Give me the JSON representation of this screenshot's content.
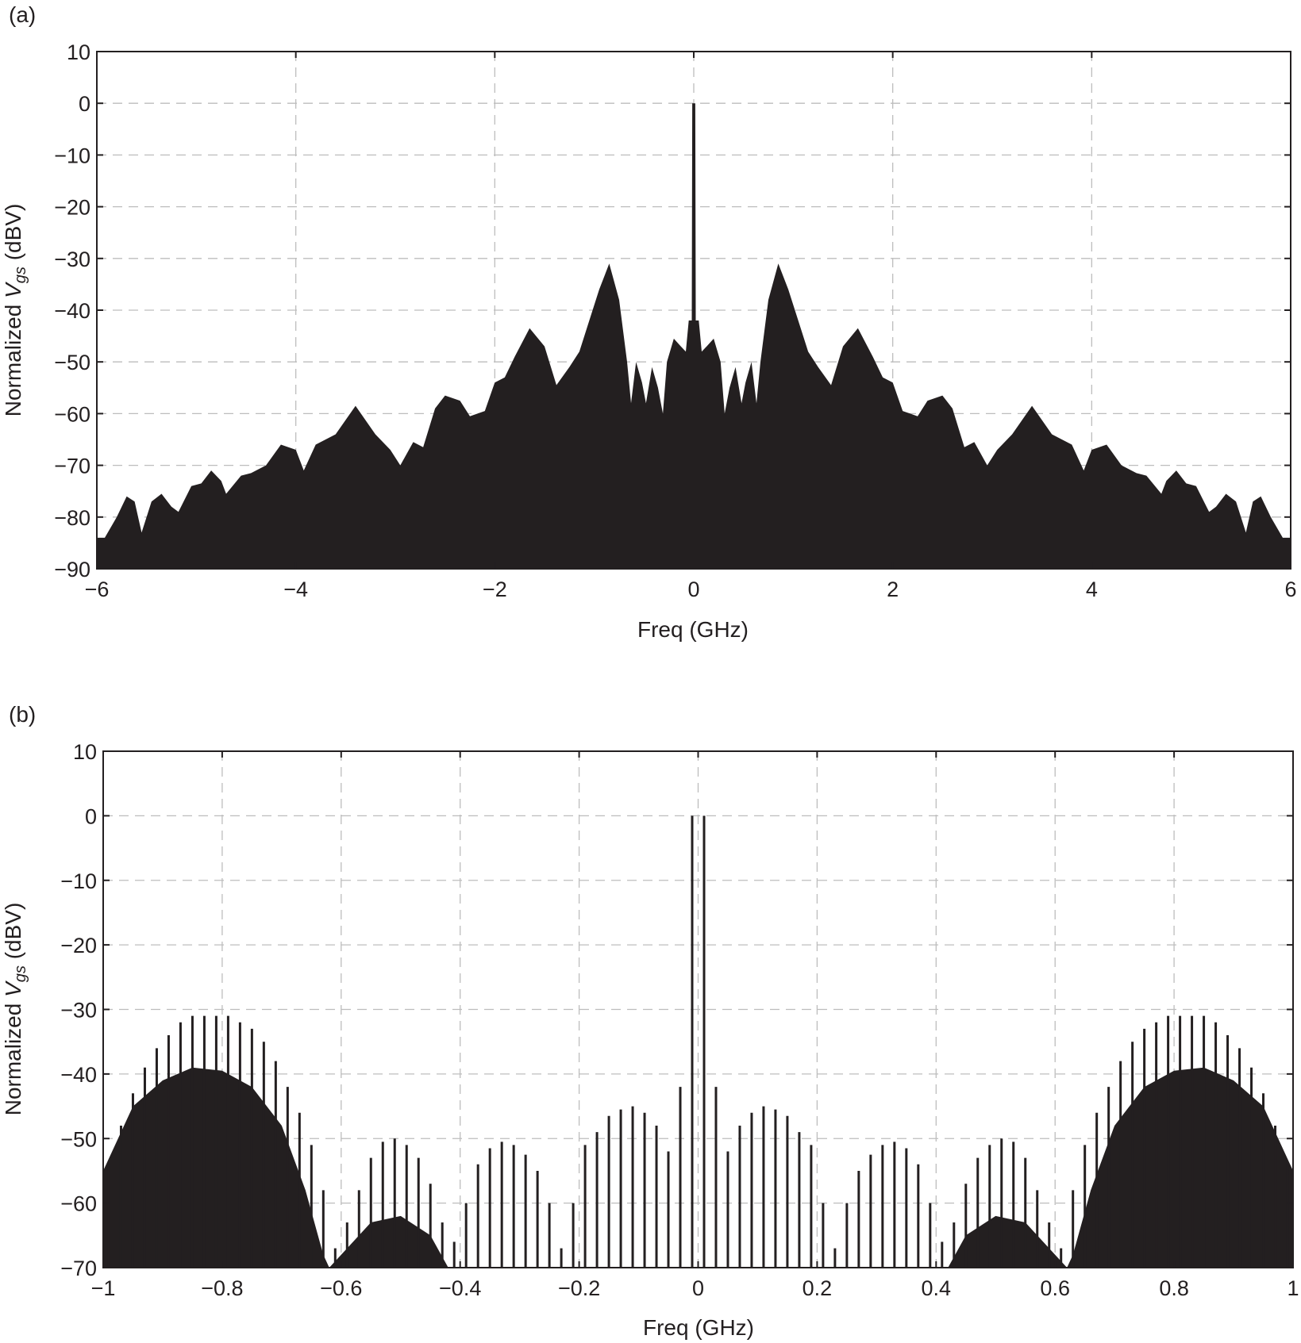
{
  "chart_data": [
    {
      "panel_label": "(a)",
      "type": "area",
      "xlabel": "Freq (GHz)",
      "ylabel": {
        "prefix": "Normalized ",
        "var": "V",
        "sub": "gs",
        "suffix": " (dBV)"
      },
      "xlim": [
        -6,
        6
      ],
      "ylim": [
        -90,
        10
      ],
      "xticks": [
        -6,
        -4,
        -2,
        0,
        2,
        4,
        6
      ],
      "xtick_labels": [
        "−6",
        "−4",
        "−2",
        "0",
        "2",
        "4",
        "6"
      ],
      "yticks": [
        10,
        0,
        -10,
        -20,
        -30,
        -40,
        -50,
        -60,
        -70,
        -80,
        -90
      ],
      "ytick_labels": [
        "10",
        "0",
        "−10",
        "−20",
        "−30",
        "−40",
        "−50",
        "−60",
        "−70",
        "−80",
        "−90"
      ],
      "grid": true,
      "color": "#231f20",
      "x": [
        -6,
        -5.92,
        -5.8,
        -5.7,
        -5.62,
        -5.55,
        -5.45,
        -5.35,
        -5.25,
        -5.18,
        -5.05,
        -4.95,
        -4.85,
        -4.75,
        -4.7,
        -4.55,
        -4.45,
        -4.3,
        -4.15,
        -4.0,
        -3.92,
        -3.8,
        -3.6,
        -3.4,
        -3.2,
        -3.05,
        -2.95,
        -2.82,
        -2.72,
        -2.6,
        -2.5,
        -2.35,
        -2.25,
        -2.1,
        -2.0,
        -1.9,
        -1.8,
        -1.65,
        -1.5,
        -1.38,
        -1.25,
        -1.15,
        -1.05,
        -0.95,
        -0.85,
        -0.75,
        -0.67,
        -0.63,
        -0.58,
        -0.52,
        -0.48,
        -0.42,
        -0.36,
        -0.31,
        -0.27,
        -0.2,
        -0.13,
        -0.08,
        -0.05,
        -0.02,
        -0.015,
        0.015,
        0.02,
        0.05,
        0.08,
        0.13,
        0.2,
        0.27,
        0.31,
        0.36,
        0.42,
        0.48,
        0.52,
        0.58,
        0.63,
        0.67,
        0.75,
        0.85,
        0.95,
        1.05,
        1.15,
        1.25,
        1.38,
        1.5,
        1.65,
        1.8,
        1.9,
        2.0,
        2.1,
        2.25,
        2.35,
        2.5,
        2.6,
        2.72,
        2.82,
        2.95,
        3.05,
        3.2,
        3.4,
        3.6,
        3.8,
        3.92,
        4.0,
        4.15,
        4.3,
        4.45,
        4.55,
        4.7,
        4.75,
        4.85,
        4.95,
        5.05,
        5.18,
        5.25,
        5.35,
        5.45,
        5.55,
        5.62,
        5.7,
        5.8,
        5.92,
        6
      ],
      "y": [
        -84,
        -84,
        -80,
        -76,
        -77,
        -83,
        -77,
        -75.5,
        -78,
        -79,
        -74,
        -73.5,
        -71,
        -73,
        -75.5,
        -72,
        -71.5,
        -70,
        -66,
        -67,
        -71,
        -66,
        -64,
        -58.5,
        -64,
        -67,
        -70,
        -65.5,
        -66.5,
        -59,
        -56.5,
        -57.5,
        -60.5,
        -59.5,
        -54,
        -53,
        -49,
        -43.5,
        -47,
        -54.5,
        -51,
        -48,
        -42,
        -36,
        -31,
        -38,
        -50,
        -58,
        -50,
        -54,
        -58,
        -51,
        -55,
        -60,
        -50,
        -45.5,
        -47,
        -48,
        -42,
        -42,
        0,
        0,
        -42,
        -42,
        -48,
        -47,
        -45.5,
        -50,
        -60,
        -55,
        -51,
        -58,
        -54,
        -50,
        -58,
        -50,
        -38,
        -31,
        -36,
        -42,
        -48,
        -51,
        -54.5,
        -47,
        -43.5,
        -49,
        -53,
        -54,
        -59.5,
        -60.5,
        -57.5,
        -56.5,
        -59,
        -66.5,
        -65.5,
        -70,
        -67,
        -64,
        -58.5,
        -64,
        -66,
        -71,
        -67,
        -66,
        -70,
        -71.5,
        -72,
        -75.5,
        -73,
        -71,
        -73.5,
        -74,
        -79,
        -78,
        -75.5,
        -77,
        -83,
        -77,
        -76,
        -80,
        -84,
        -84
      ]
    },
    {
      "panel_label": "(b)",
      "type": "bar",
      "xlabel": "Freq (GHz)",
      "ylabel": {
        "prefix": "Normalized ",
        "var": "V",
        "sub": "gs",
        "suffix": " (dBV)"
      },
      "xlim": [
        -1,
        1
      ],
      "ylim": [
        -70,
        10
      ],
      "xticks": [
        -1,
        -0.8,
        -0.6,
        -0.4,
        -0.2,
        0,
        0.2,
        0.4,
        0.6,
        0.8,
        1
      ],
      "xtick_labels": [
        "−1",
        "−0.8",
        "−0.6",
        "−0.4",
        "−0.2",
        "0",
        "0.2",
        "0.4",
        "0.6",
        "0.8",
        "1"
      ],
      "yticks": [
        10,
        0,
        -10,
        -20,
        -30,
        -40,
        -50,
        -60,
        -70
      ],
      "ytick_labels": [
        "10",
        "0",
        "−10",
        "−20",
        "−30",
        "−40",
        "−50",
        "−60",
        "−70"
      ],
      "grid": true,
      "color": "#231f20",
      "stems_x": [
        0.01,
        0.03,
        0.05,
        0.07,
        0.09,
        0.11,
        0.13,
        0.15,
        0.17,
        0.19,
        0.21,
        0.23,
        0.25,
        0.27,
        0.29,
        0.31,
        0.33,
        0.35,
        0.37,
        0.39,
        0.41,
        0.43,
        0.45,
        0.47,
        0.49,
        0.51,
        0.53,
        0.55,
        0.57,
        0.59,
        0.61,
        0.63,
        0.65,
        0.67,
        0.69,
        0.71,
        0.73,
        0.75,
        0.77,
        0.79,
        0.81,
        0.83,
        0.85,
        0.87,
        0.89,
        0.91,
        0.93,
        0.95,
        0.97,
        0.99,
        -0.01,
        -0.03,
        -0.05,
        -0.07,
        -0.09,
        -0.11,
        -0.13,
        -0.15,
        -0.17,
        -0.19,
        -0.21,
        -0.23,
        -0.25,
        -0.27,
        -0.29,
        -0.31,
        -0.33,
        -0.35,
        -0.37,
        -0.39,
        -0.41,
        -0.43,
        -0.45,
        -0.47,
        -0.49,
        -0.51,
        -0.53,
        -0.55,
        -0.57,
        -0.59,
        -0.61,
        -0.63,
        -0.65,
        -0.67,
        -0.69,
        -0.71,
        -0.73,
        -0.75,
        -0.77,
        -0.79,
        -0.81,
        -0.83,
        -0.85,
        -0.87,
        -0.89,
        -0.91,
        -0.93,
        -0.95,
        -0.97,
        -0.99
      ],
      "stems_y": [
        0,
        -42,
        -52,
        -48,
        -46,
        -45,
        -45.5,
        -46.5,
        -49,
        -51,
        -60,
        -67,
        -60,
        -55,
        -52.5,
        -51,
        -50.5,
        -51.5,
        -54,
        -60,
        -66,
        -63,
        -57,
        -53,
        -51,
        -50,
        -50.5,
        -53,
        -58,
        -63,
        -67,
        -58,
        -51,
        -46,
        -42,
        -38,
        -35,
        -33,
        -32,
        -31,
        -31,
        -31,
        -31,
        -32,
        -34,
        -36,
        -39,
        -43,
        -48,
        -54,
        0,
        -42,
        -52,
        -48,
        -46,
        -45,
        -45.5,
        -46.5,
        -49,
        -51,
        -60,
        -67,
        -60,
        -55,
        -52.5,
        -51,
        -50.5,
        -51.5,
        -54,
        -60,
        -66,
        -63,
        -57,
        -53,
        -51,
        -50,
        -50.5,
        -53,
        -58,
        -63,
        -67,
        -58,
        -51,
        -46,
        -42,
        -38,
        -35,
        -33,
        -32,
        -31,
        -31,
        -31,
        -31,
        -32,
        -34,
        -36,
        -39,
        -43,
        -48,
        -54
      ],
      "dense_x": [
        -1.0,
        -0.95,
        -0.9,
        -0.85,
        -0.8,
        -0.75,
        -0.7,
        -0.66,
        -0.63,
        -0.62,
        -0.6,
        -0.55,
        -0.5,
        -0.45,
        -0.42,
        0.42,
        0.45,
        0.5,
        0.55,
        0.6,
        0.62,
        0.63,
        0.66,
        0.7,
        0.75,
        0.8,
        0.85,
        0.9,
        0.95,
        1.0
      ],
      "dense_y": [
        -55,
        -45,
        -41,
        -39,
        -39.5,
        -42,
        -48,
        -58,
        -68,
        -70,
        -68,
        -63,
        -62,
        -65,
        -70,
        -70,
        -65,
        -62,
        -63,
        -68,
        -70,
        -68,
        -58,
        -48,
        -42,
        -39.5,
        -39,
        -41,
        -45,
        -55
      ]
    }
  ]
}
